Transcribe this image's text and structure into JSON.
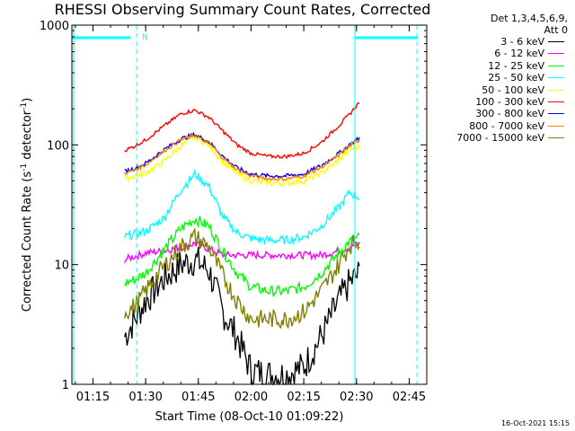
{
  "chart_data": {
    "type": "line",
    "title": "RHESSI Observing Summary Count Rates, Corrected",
    "xlabel": "Start Time (08-Oct-10 01:09:22)",
    "ylabel": "Corrected Count Rate (s-1 detector-1)",
    "ylabel_parts": [
      "Corrected Count Rate (s",
      "-1",
      " detector",
      "-1",
      ")"
    ],
    "yscale": "log",
    "ylim": [
      1,
      1000
    ],
    "xlim": [
      "01:09",
      "02:50"
    ],
    "x_ticks": [
      "01:15",
      "01:30",
      "01:45",
      "02:00",
      "02:15",
      "02:30",
      "02:45"
    ],
    "y_ticks": [
      "1",
      "10",
      "100",
      "1000"
    ],
    "legend_header": [
      "Det 1,3,4,5,6,9,",
      "Att 0"
    ],
    "night_marker_label": "N",
    "series": [
      {
        "name": "3 - 6 keV",
        "color": "#000000",
        "x": [
          "01:24",
          "01:27",
          "01:30",
          "01:35",
          "01:40",
          "01:44",
          "01:48",
          "01:52",
          "01:56",
          "02:00",
          "02:05",
          "02:10",
          "02:15",
          "02:20",
          "02:25",
          "02:28",
          "02:31"
        ],
        "y": [
          2.5,
          3.5,
          5,
          7.5,
          10,
          11,
          9,
          4,
          2.5,
          1.3,
          1.2,
          1.2,
          1.4,
          2.5,
          5,
          7,
          8.5
        ]
      },
      {
        "name": "6 - 12 keV",
        "color": "#ff00ff",
        "x": [
          "01:24",
          "01:30",
          "01:35",
          "01:40",
          "01:44",
          "01:48",
          "01:52",
          "01:56",
          "02:00",
          "02:05",
          "02:10",
          "02:15",
          "02:20",
          "02:25",
          "02:28",
          "02:31"
        ],
        "y": [
          11,
          12.5,
          13,
          14,
          15,
          13.5,
          12,
          12,
          12,
          12,
          12,
          12,
          12,
          13,
          14,
          15
        ]
      },
      {
        "name": "12 - 25 keV",
        "color": "#00ff00",
        "x": [
          "01:24",
          "01:27",
          "01:30",
          "01:35",
          "01:40",
          "01:44",
          "01:48",
          "01:52",
          "01:56",
          "02:00",
          "02:05",
          "02:10",
          "02:15",
          "02:20",
          "02:25",
          "02:28",
          "02:31"
        ],
        "y": [
          7,
          7.5,
          8.5,
          13,
          20,
          24,
          21,
          13,
          8.5,
          6.5,
          6,
          6,
          6.5,
          8.5,
          12.5,
          15.5,
          17
        ]
      },
      {
        "name": "25 - 50 keV",
        "color": "#00ffff",
        "x": [
          "01:24",
          "01:27",
          "01:30",
          "01:35",
          "01:40",
          "01:44",
          "01:48",
          "01:52",
          "01:56",
          "02:00",
          "02:05",
          "02:10",
          "02:15",
          "02:20",
          "02:25",
          "02:28",
          "02:31"
        ],
        "y": [
          17,
          18,
          19,
          24,
          42,
          57,
          45,
          25,
          18.5,
          16.5,
          16,
          16,
          17,
          21,
          30,
          40,
          36
        ]
      },
      {
        "name": "50 - 100 keV",
        "color": "#ffff00",
        "x": [
          "01:24",
          "01:27",
          "01:30",
          "01:35",
          "01:40",
          "01:44",
          "01:48",
          "01:52",
          "01:56",
          "02:00",
          "02:05",
          "02:10",
          "02:15",
          "02:20",
          "02:25",
          "02:28",
          "02:31"
        ],
        "y": [
          52,
          55,
          58,
          72,
          98,
          116,
          100,
          72,
          57,
          50,
          48,
          48,
          50,
          58,
          75,
          92,
          96
        ]
      },
      {
        "name": "100 - 300 keV",
        "color": "#ff0000",
        "x": [
          "01:24",
          "01:27",
          "01:30",
          "01:35",
          "01:40",
          "01:44",
          "01:48",
          "01:52",
          "01:56",
          "02:00",
          "02:05",
          "02:10",
          "02:15",
          "02:20",
          "02:25",
          "02:28",
          "02:31"
        ],
        "y": [
          90,
          98,
          110,
          142,
          182,
          195,
          170,
          130,
          100,
          85,
          80,
          80,
          85,
          105,
          145,
          180,
          230
        ]
      },
      {
        "name": "300 - 800 keV",
        "color": "#0000ff",
        "x": [
          "01:24",
          "01:27",
          "01:30",
          "01:35",
          "01:40",
          "01:44",
          "01:48",
          "01:52",
          "01:56",
          "02:00",
          "02:05",
          "02:10",
          "02:15",
          "02:20",
          "02:25",
          "02:28",
          "02:31"
        ],
        "y": [
          60,
          64,
          70,
          90,
          112,
          122,
          106,
          80,
          64,
          57,
          55,
          55,
          57,
          67,
          85,
          100,
          115
        ]
      },
      {
        "name": "800 - 7000 keV",
        "color": "#ff8000",
        "x": [
          "01:24",
          "01:27",
          "01:30",
          "01:35",
          "01:40",
          "01:44",
          "01:48",
          "01:52",
          "01:56",
          "02:00",
          "02:05",
          "02:10",
          "02:15",
          "02:20",
          "02:25",
          "02:28",
          "02:31"
        ],
        "y": [
          58,
          62,
          68,
          88,
          110,
          120,
          104,
          78,
          62,
          55,
          52,
          52,
          55,
          65,
          82,
          98,
          110
        ]
      },
      {
        "name": "7000 - 15000 keV",
        "color": "#808000",
        "x": [
          "01:24",
          "01:27",
          "01:30",
          "01:35",
          "01:40",
          "01:44",
          "01:48",
          "01:52",
          "01:56",
          "02:00",
          "02:05",
          "02:10",
          "02:15",
          "02:20",
          "02:25",
          "02:28",
          "02:31"
        ],
        "y": [
          4,
          4.5,
          6,
          9.5,
          14,
          17,
          14,
          8,
          5,
          3.5,
          3.5,
          3.5,
          4,
          6,
          10,
          14.5,
          16
        ]
      }
    ]
  },
  "footer": {
    "timestamp": "16-Oct-2021 15:15"
  }
}
